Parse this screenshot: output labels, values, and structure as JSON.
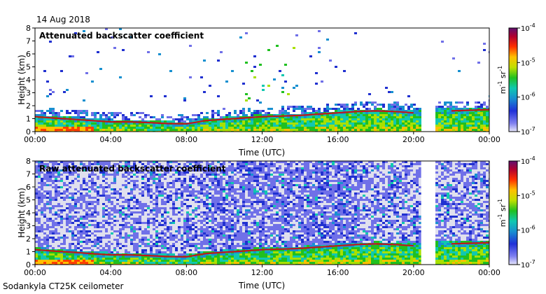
{
  "date": "14 Aug 2018",
  "footer": "Sodankyla CT25K ceilometer",
  "chart_data": [
    {
      "type": "heatmap",
      "title": "Attenuated backscatter coefficient",
      "xlabel": "Time (UTC)",
      "ylabel": "Height (km)",
      "xlim": [
        "00:00",
        "24:00"
      ],
      "ylim": [
        0,
        8
      ],
      "x_ticks": [
        "00:00",
        "04:00",
        "08:00",
        "12:00",
        "16:00",
        "20:00",
        "00:00"
      ],
      "y_ticks": [
        "0",
        "1",
        "2",
        "3",
        "4",
        "5",
        "6",
        "7",
        "8"
      ],
      "colorbar": {
        "label_base": "m",
        "label_exp1": "-1",
        "label_mid": "sr",
        "label_exp2": "-1",
        "scale": "log",
        "range": [
          1e-07,
          0.0001
        ],
        "ticks": [
          {
            "base": "10",
            "exp": "-7"
          },
          {
            "base": "10",
            "exp": "-6"
          },
          {
            "base": "10",
            "exp": "-5"
          },
          {
            "base": "10",
            "exp": "-4"
          }
        ]
      },
      "boundary_layer_top_km": {
        "time_h": [
          0,
          1,
          2,
          3,
          4,
          5,
          6,
          7,
          8,
          9,
          10,
          11,
          12,
          13,
          14,
          15,
          16,
          17,
          18,
          19,
          20,
          21,
          22,
          23,
          24
        ],
        "height_km": [
          1.15,
          1.05,
          0.95,
          0.85,
          0.75,
          0.75,
          0.7,
          0.62,
          0.6,
          0.85,
          0.95,
          1.05,
          1.15,
          1.2,
          1.25,
          1.35,
          1.45,
          1.55,
          1.6,
          1.55,
          1.45,
          null,
          1.6,
          1.65,
          1.7
        ]
      }
    },
    {
      "type": "heatmap",
      "title": "Raw attenuated backscatter coefficient",
      "xlabel": "Time (UTC)",
      "ylabel": "Height (km)",
      "xlim": [
        "00:00",
        "24:00"
      ],
      "ylim": [
        0,
        8
      ],
      "x_ticks": [
        "00:00",
        "04:00",
        "08:00",
        "12:00",
        "16:00",
        "20:00",
        "00:00"
      ],
      "y_ticks": [
        "0",
        "1",
        "2",
        "3",
        "4",
        "5",
        "6",
        "7",
        "8"
      ],
      "colorbar": {
        "label_base": "m",
        "label_exp1": "-1",
        "label_mid": "sr",
        "label_exp2": "-1",
        "scale": "log",
        "range": [
          1e-07,
          0.0001
        ],
        "ticks": [
          {
            "base": "10",
            "exp": "-7"
          },
          {
            "base": "10",
            "exp": "-6"
          },
          {
            "base": "10",
            "exp": "-5"
          },
          {
            "base": "10",
            "exp": "-4"
          }
        ]
      },
      "boundary_layer_top_km": {
        "time_h": [
          0,
          1,
          2,
          3,
          4,
          5,
          6,
          7,
          8,
          9,
          10,
          11,
          12,
          13,
          14,
          15,
          16,
          17,
          18,
          19,
          20,
          21,
          22,
          23,
          24
        ],
        "height_km": [
          1.15,
          1.05,
          0.95,
          0.85,
          0.75,
          0.75,
          0.7,
          0.62,
          0.6,
          0.85,
          0.95,
          1.05,
          1.15,
          1.2,
          1.25,
          1.35,
          1.45,
          1.55,
          1.6,
          1.55,
          1.45,
          null,
          1.6,
          1.65,
          1.7
        ]
      },
      "data_gap_time_h": [
        20.4,
        21.1
      ]
    }
  ]
}
